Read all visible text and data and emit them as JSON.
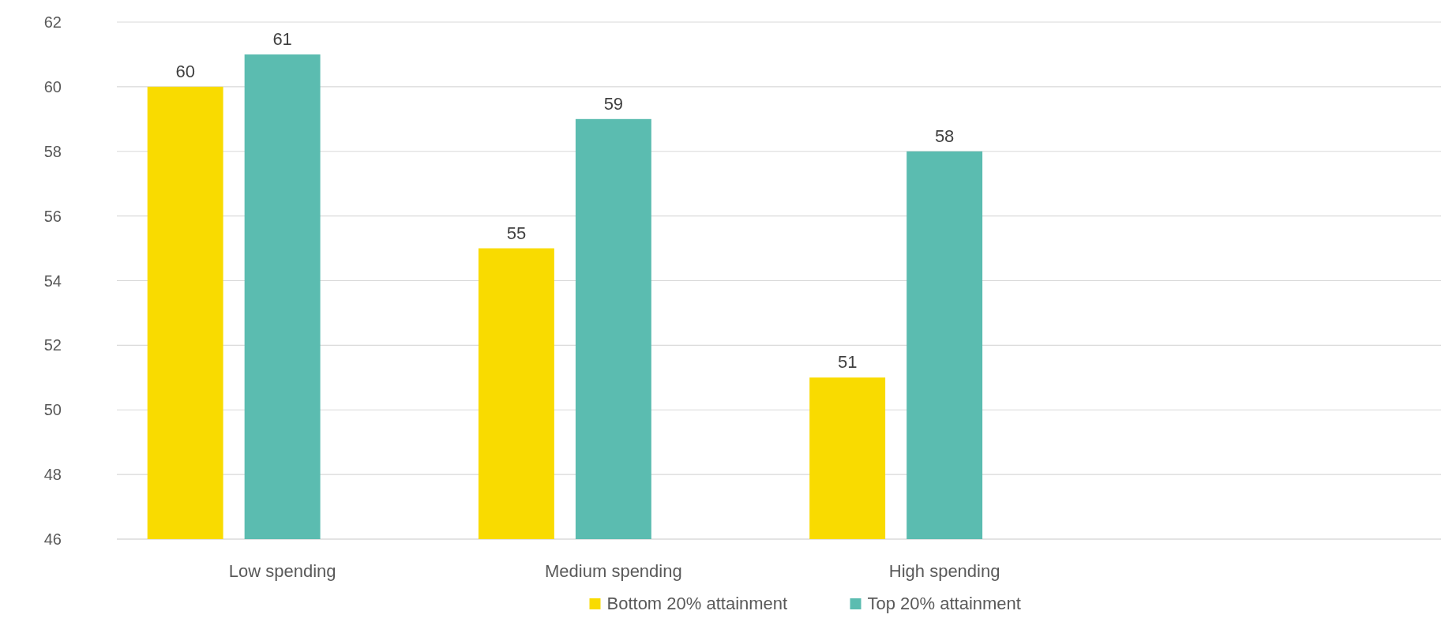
{
  "chart_data": {
    "type": "bar",
    "categories": [
      "Low spending",
      "Medium spending",
      "High spending",
      null
    ],
    "series": [
      {
        "name": "Bottom 20% attainment",
        "color": "#f9db00",
        "values": [
          60,
          55,
          51,
          null
        ]
      },
      {
        "name": "Top 20% attainment",
        "color": "#5bbcb0",
        "values": [
          61,
          59,
          58,
          null
        ]
      }
    ],
    "ylim": [
      46,
      62
    ],
    "yticks": [
      46,
      48,
      50,
      52,
      54,
      56,
      58,
      60,
      62
    ],
    "grid": "y",
    "legend": "bottom",
    "data_labels": true
  }
}
